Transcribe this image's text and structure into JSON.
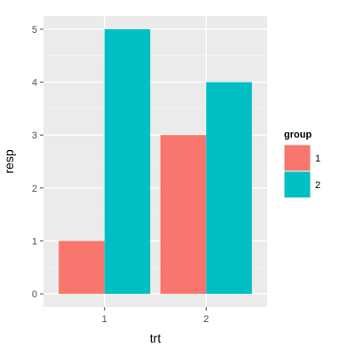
{
  "chart_data": {
    "type": "bar",
    "categories": [
      "1",
      "2"
    ],
    "series": [
      {
        "name": "1",
        "color": "#F8766D",
        "values": [
          1,
          3
        ]
      },
      {
        "name": "2",
        "color": "#00BFC4",
        "values": [
          5,
          4
        ]
      }
    ],
    "xlabel": "trt",
    "ylabel": "resp",
    "ylim": [
      -0.25,
      5.25
    ],
    "yticks": [
      "0",
      "1",
      "2",
      "3",
      "4",
      "5"
    ],
    "legend": {
      "title": "group",
      "placement": "right"
    },
    "panel_background": "#EBEBEB",
    "grid": true
  }
}
